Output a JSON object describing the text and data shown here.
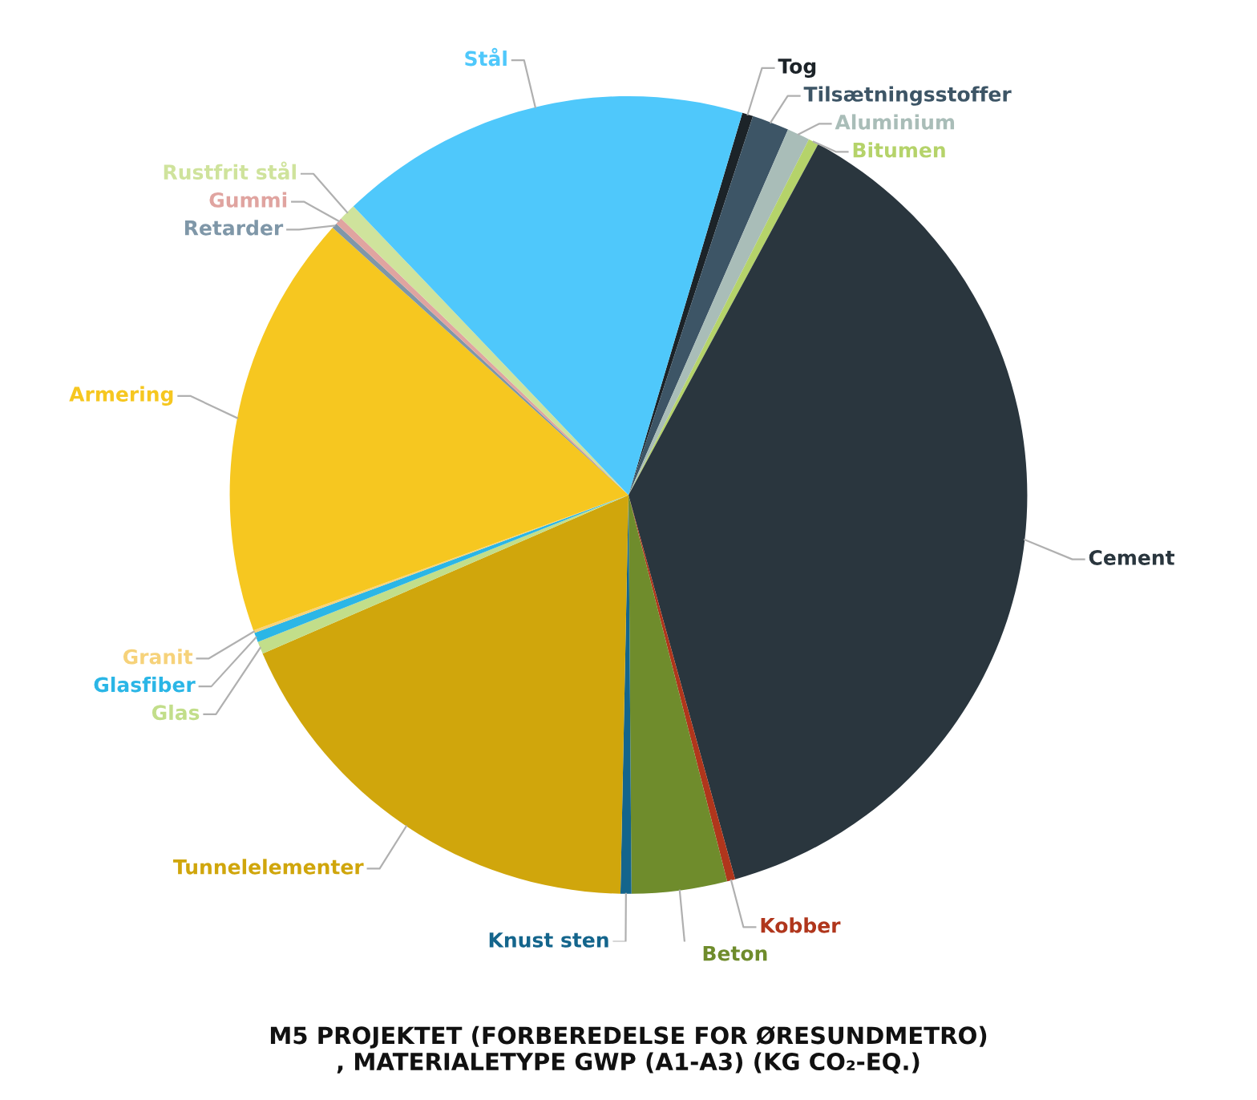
{
  "chart_data": {
    "type": "pie",
    "title": "M5 PROJEKTET (FORBEREDELSE FOR ØRESUNDMETRO)\n, MATERIALETYPE GWP (A1-A3) (KG CO₂-EQ.)",
    "categories": [
      "Tog",
      "Tilsætningsstoffer",
      "Aluminium",
      "Bitumen",
      "Cement",
      "Kobber",
      "Beton",
      "Knust sten",
      "Tunnelelementer",
      "Glas",
      "Glasfiber",
      "Granit",
      "Armering",
      "Retarder",
      "Gummi",
      "Rustfrit stål",
      "Stål"
    ],
    "values": [
      0.44,
      1.5,
      0.92,
      0.42,
      37.8,
      0.33,
      3.86,
      0.44,
      18.17,
      0.5,
      0.39,
      0.11,
      17.2,
      0.22,
      0.28,
      0.69,
      16.73
    ],
    "colors": [
      "#1c2328",
      "#3d5566",
      "#a9bdb8",
      "#b5d36a",
      "#2a363e",
      "#b0361c",
      "#6f8c2c",
      "#14658c",
      "#d0a60c",
      "#c2de8a",
      "#2bb6e6",
      "#f6d27a",
      "#f6c720",
      "#7f97a8",
      "#e0a4a0",
      "#cfe39c",
      "#4fc8fb"
    ]
  }
}
